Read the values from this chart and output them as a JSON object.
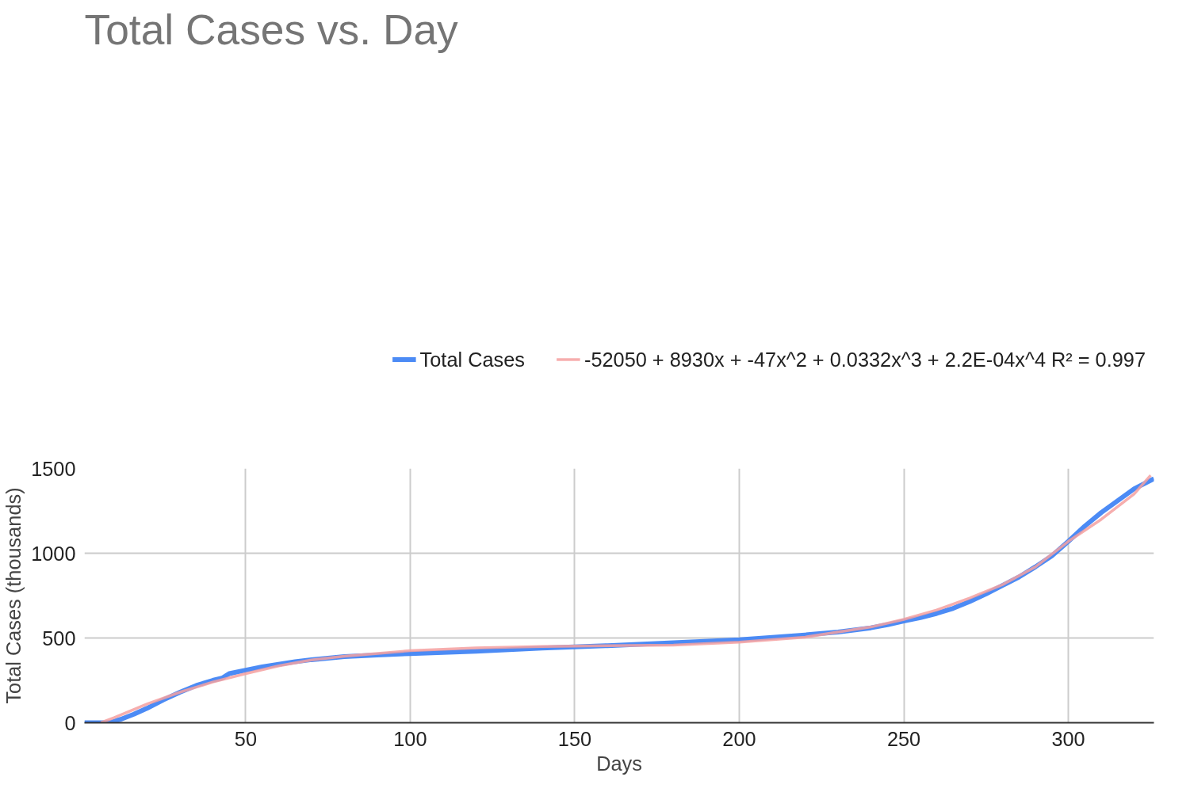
{
  "chart_data": {
    "type": "line",
    "title": "Total Cases vs. Day",
    "xlabel": "Days",
    "ylabel": "Total Cases (thousands)",
    "xlim": [
      1,
      326
    ],
    "xticks": [
      50,
      100,
      150,
      200,
      250,
      300
    ],
    "ylim": [
      0,
      1500
    ],
    "yticks": [
      0,
      500,
      1000,
      1500
    ],
    "grid": true,
    "legend": "top right",
    "line_style": "solid",
    "marker": "none",
    "series": [
      {
        "name": "Total Cases",
        "color": "#4285f4",
        "x": [
          1,
          7,
          9,
          12,
          16,
          20,
          25,
          30,
          35,
          40,
          43,
          45,
          50,
          55,
          60,
          65,
          70,
          80,
          90,
          100,
          120,
          140,
          160,
          180,
          200,
          220,
          230,
          240,
          245,
          250,
          255,
          260,
          265,
          270,
          275,
          280,
          285,
          290,
          295,
          300,
          305,
          310,
          315,
          320,
          326
        ],
        "values": [
          0,
          0,
          2,
          20,
          50,
          85,
          135,
          180,
          220,
          250,
          265,
          290,
          310,
          330,
          345,
          360,
          372,
          390,
          400,
          408,
          422,
          440,
          455,
          472,
          490,
          518,
          535,
          560,
          578,
          600,
          620,
          645,
          675,
          715,
          760,
          810,
          860,
          920,
          985,
          1070,
          1160,
          1240,
          1310,
          1380,
          1440
        ]
      },
      {
        "name": "-52050 + 8930x + -47x^2 + 0.0332x^3 + 2.2E-04x^4 R² = 0.997",
        "color": "#f4a0a0",
        "x": [
          6,
          10,
          20,
          30,
          40,
          50,
          60,
          70,
          80,
          100,
          120,
          140,
          160,
          180,
          200,
          220,
          240,
          250,
          260,
          270,
          280,
          290,
          300,
          310,
          320,
          325
        ],
        "values": [
          0,
          30,
          110,
          180,
          240,
          290,
          335,
          370,
          392,
          425,
          442,
          450,
          455,
          458,
          475,
          505,
          565,
          610,
          665,
          735,
          815,
          920,
          1070,
          1200,
          1350,
          1460
        ]
      }
    ]
  }
}
